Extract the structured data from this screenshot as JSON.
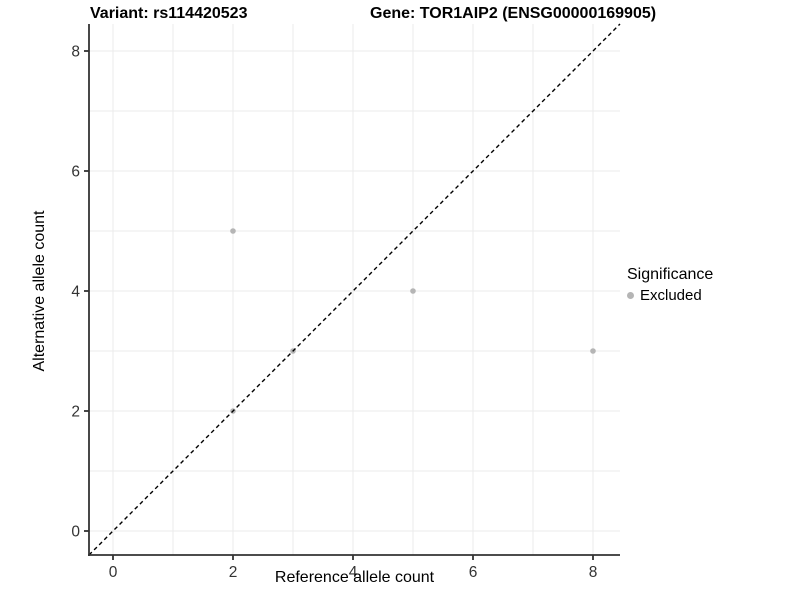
{
  "title": {
    "variant": "Variant: rs114420523",
    "gene": "Gene: TOR1AIP2 (ENSG00000169905)"
  },
  "chart_data": {
    "type": "scatter",
    "xlabel": "Reference allele count",
    "ylabel": "Alternative allele count",
    "xlim": [
      -0.4,
      8.45
    ],
    "ylim": [
      -0.4,
      8.45
    ],
    "xticks": [
      0,
      2,
      4,
      6,
      8
    ],
    "yticks": [
      0,
      2,
      4,
      6,
      8
    ],
    "grid": "on",
    "gridline_step": 1,
    "series": [
      {
        "name": "Excluded",
        "color": "#b5b5b5",
        "points": [
          {
            "x": 2,
            "y": 2
          },
          {
            "x": 2,
            "y": 5
          },
          {
            "x": 3,
            "y": 3
          },
          {
            "x": 5,
            "y": 4
          },
          {
            "x": 8,
            "y": 3
          }
        ]
      }
    ],
    "reference_line": {
      "type": "identity",
      "style": "dashed",
      "color": "#000000"
    },
    "legend": {
      "title": "Significance",
      "position": "right",
      "items": [
        {
          "label": "Excluded",
          "color": "#b5b5b5"
        }
      ]
    },
    "colors": {
      "grid": "#ebebeb",
      "axis": "#333333",
      "tick_label": "#333333",
      "background": "#ffffff"
    }
  }
}
